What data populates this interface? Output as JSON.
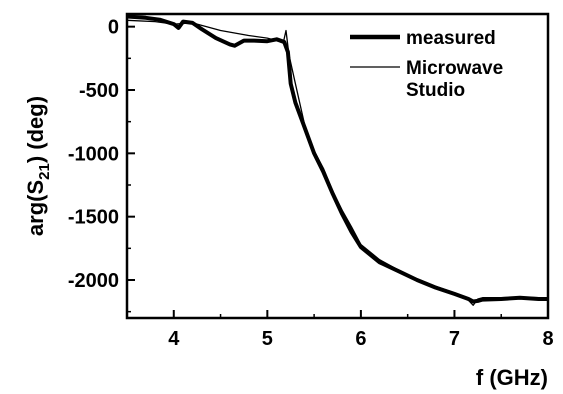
{
  "chart_data": {
    "type": "line",
    "xlabel": "f (GHz)",
    "ylabel_prefix": "arg(S",
    "ylabel_sub": "21",
    "ylabel_suffix": ") (deg)",
    "xlim": [
      3.5,
      8
    ],
    "ylim": [
      -2300,
      100
    ],
    "x_ticks": [
      4,
      5,
      6,
      7,
      8
    ],
    "y_ticks": [
      0,
      -500,
      -1000,
      -1500,
      -2000
    ],
    "x_tick_labels": [
      "4",
      "5",
      "6",
      "7",
      "8"
    ],
    "y_tick_labels": [
      "0",
      "-500",
      "-1000",
      "-1500",
      "-2000"
    ],
    "grid": false,
    "legend_position": "top-right",
    "series": [
      {
        "name": "measured",
        "style": "thick",
        "color": "#000000",
        "x": [
          3.5,
          3.7,
          3.85,
          4.0,
          4.05,
          4.1,
          4.2,
          4.3,
          4.45,
          4.6,
          4.65,
          4.75,
          4.85,
          5.0,
          5.1,
          5.18,
          5.22,
          5.25,
          5.3,
          5.4,
          5.5,
          5.6,
          5.7,
          5.8,
          5.9,
          6.0,
          6.2,
          6.4,
          6.6,
          6.8,
          7.0,
          7.15,
          7.2,
          7.25,
          7.3,
          7.5,
          7.7,
          7.9,
          8.0
        ],
        "y": [
          80,
          70,
          55,
          20,
          -10,
          40,
          30,
          -20,
          -90,
          -140,
          -150,
          -110,
          -110,
          -115,
          -100,
          -120,
          -200,
          -450,
          -600,
          -800,
          -1000,
          -1150,
          -1320,
          -1480,
          -1620,
          -1740,
          -1860,
          -1930,
          -2000,
          -2060,
          -2110,
          -2150,
          -2170,
          -2165,
          -2155,
          -2150,
          -2140,
          -2150,
          -2150
        ]
      },
      {
        "name": "Microwave Studio",
        "style": "thin",
        "color": "#000000",
        "x": [
          3.5,
          3.8,
          4.0,
          4.2,
          4.5,
          4.8,
          5.0,
          5.1,
          5.17,
          5.2,
          5.23,
          5.3,
          5.4,
          5.5,
          5.6,
          5.7,
          5.8,
          5.9,
          6.0,
          6.2,
          6.4,
          6.6,
          6.8,
          7.0,
          7.15,
          7.2,
          7.25,
          7.3,
          7.5,
          7.7,
          7.9,
          8.0
        ],
        "y": [
          50,
          40,
          20,
          30,
          -30,
          -70,
          -90,
          -110,
          -130,
          -30,
          -220,
          -450,
          -780,
          -980,
          -1120,
          -1300,
          -1450,
          -1580,
          -1720,
          -1840,
          -1920,
          -1990,
          -2050,
          -2100,
          -2160,
          -2200,
          -2150,
          -2140,
          -2140,
          -2135,
          -2140,
          -2140
        ]
      }
    ]
  }
}
